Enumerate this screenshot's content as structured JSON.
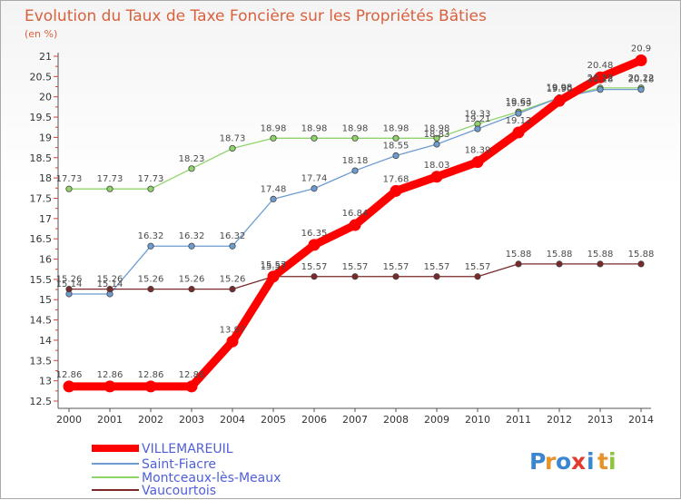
{
  "chart_data": {
    "type": "line",
    "title": "Evolution du Taux de Taxe Foncière sur les Propriétés Bâties",
    "subtitle": "(en %)",
    "xlabel": "",
    "ylabel": "(en %)",
    "x": [
      2000,
      2001,
      2002,
      2003,
      2004,
      2005,
      2006,
      2007,
      2008,
      2009,
      2010,
      2011,
      2012,
      2013,
      2014
    ],
    "ylim": [
      12.5,
      21
    ],
    "yticks": [
      12.5,
      13,
      13.5,
      14,
      14.5,
      15,
      15.5,
      16,
      16.5,
      17,
      17.5,
      18,
      18.5,
      19,
      19.5,
      20,
      20.5,
      21
    ],
    "grid": "none",
    "legend_position": "bottom-left",
    "series": [
      {
        "name": "VILLEMAREUIL",
        "color": "#ff0000",
        "values": [
          12.86,
          12.86,
          12.86,
          12.86,
          13.97,
          15.57,
          16.35,
          16.84,
          17.68,
          18.03,
          18.39,
          19.12,
          19.9,
          20.48,
          20.9
        ],
        "labels": [
          "12.86",
          "12.86",
          "12.86",
          "12.86",
          "13.97",
          "15.57",
          "16.35",
          "16.84",
          "17.68",
          "18.03",
          "18.39",
          "19.12",
          "19.90",
          "20.48",
          "20.9"
        ]
      },
      {
        "name": "Saint-Fiacre",
        "color": "#6e9cd0",
        "values": [
          15.14,
          15.14,
          16.32,
          16.32,
          16.32,
          17.48,
          17.74,
          18.18,
          18.55,
          18.83,
          19.21,
          19.59,
          19.98,
          20.18,
          20.18
        ],
        "labels": [
          "15.14",
          "15.14",
          "16.32",
          "16.32",
          "16.32",
          "17.48",
          "17.74",
          "18.18",
          "18.55",
          "18.83",
          "19.21",
          "19.59",
          "19.98",
          "20.18",
          "20.18"
        ]
      },
      {
        "name": "Montceaux-lès-Meaux",
        "color": "#8fd46a",
        "values": [
          17.73,
          17.73,
          17.73,
          18.23,
          18.73,
          18.98,
          18.98,
          18.98,
          18.98,
          18.98,
          19.33,
          19.63,
          19.98,
          20.22,
          20.22
        ],
        "labels": [
          "17.73",
          "17.73",
          "17.73",
          "18.23",
          "18.73",
          "18.98",
          "18.98",
          "18.98",
          "18.98",
          "18.98",
          "19.33",
          "19.63",
          "19.98",
          "20.22",
          "20.22"
        ]
      },
      {
        "name": "Vaucourtois",
        "color": "#7a2a2a",
        "values": [
          15.26,
          15.26,
          15.26,
          15.26,
          15.26,
          15.57,
          15.57,
          15.57,
          15.57,
          15.57,
          15.57,
          15.88,
          15.88,
          15.88,
          15.88
        ],
        "labels": [
          "15.26",
          "15.26",
          "15.26",
          "15.26",
          "15.26",
          "15.57",
          "15.57",
          "15.57",
          "15.57",
          "15.57",
          "15.57",
          "15.88",
          "15.88",
          "15.88",
          "15.88"
        ]
      }
    ]
  },
  "watermark": {
    "letters": [
      "P",
      "r",
      "o",
      "x",
      "i",
      "t",
      "i"
    ],
    "colors": [
      "#3a86d0",
      "#e8932a",
      "#3a86d0",
      "#e23b2e",
      "#3a86d0",
      "#e8932a",
      "#8cc43c"
    ]
  }
}
